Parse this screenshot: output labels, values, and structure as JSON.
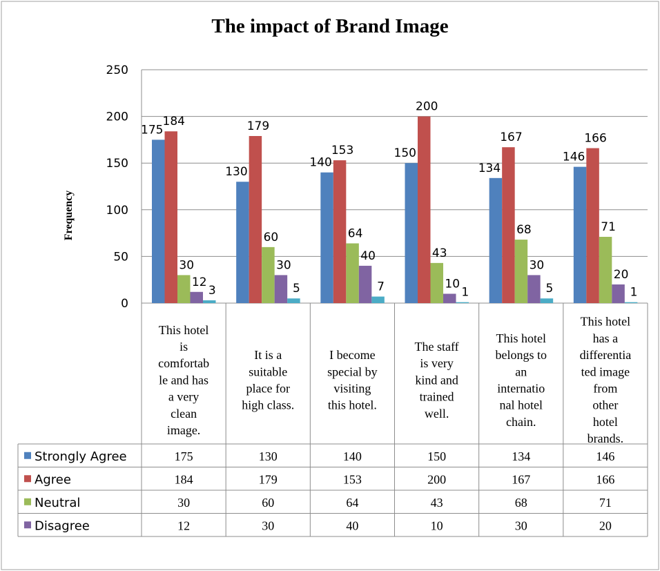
{
  "chart_data": {
    "type": "bar",
    "title": "The impact of Brand Image",
    "ylabel": "Frequency",
    "ylim": [
      0,
      250
    ],
    "yticks": [
      0,
      50,
      100,
      150,
      200,
      250
    ],
    "grid": true,
    "legend": "data-table",
    "categories": [
      [
        "This hotel",
        "is",
        "comfortab",
        "le and has",
        "a very",
        "clean",
        "image."
      ],
      [
        "It is a",
        "suitable",
        "place for",
        "high class."
      ],
      [
        "I become",
        "special by",
        "visiting",
        "this hotel."
      ],
      [
        "The staff",
        "is very",
        "kind and",
        "trained",
        "well."
      ],
      [
        "This hotel",
        "belongs to",
        "an",
        "internatio",
        "nal hotel",
        "chain."
      ],
      [
        "This hotel",
        "has a",
        "differentia",
        "ted image",
        "from",
        "other",
        "hotel",
        "brands."
      ]
    ],
    "series": [
      {
        "name": "Strongly Agree",
        "color": "#4F81BD",
        "values": [
          175,
          130,
          140,
          150,
          134,
          146
        ]
      },
      {
        "name": "Agree",
        "color": "#C0504D",
        "values": [
          184,
          179,
          153,
          200,
          167,
          166
        ]
      },
      {
        "name": "Neutral",
        "color": "#9BBB59",
        "values": [
          30,
          60,
          64,
          43,
          68,
          71
        ]
      },
      {
        "name": "Disagree",
        "color": "#8064A2",
        "values": [
          12,
          30,
          40,
          10,
          30,
          20
        ]
      },
      {
        "name": "",
        "color": "#4BACC6",
        "values": [
          3,
          5,
          7,
          1,
          5,
          1
        ],
        "in_table": false
      }
    ]
  }
}
